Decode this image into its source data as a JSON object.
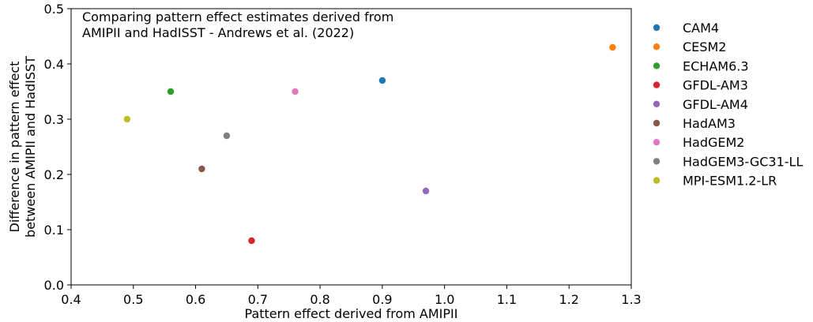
{
  "chart_data": {
    "type": "scatter",
    "annotation_lines": [
      "Comparing pattern effect estimates derived from",
      "AMIPII and HadISST - Andrews et al. (2022)"
    ],
    "xlabel": "Pattern effect derived from AMIPII",
    "ylabel_lines": [
      "Difference in pattern effect",
      "between AMIPII and HadISST"
    ],
    "xlim": [
      0.4,
      1.3
    ],
    "ylim": [
      0.0,
      0.5
    ],
    "xticks": [
      "0.4",
      "0.5",
      "0.6",
      "0.7",
      "0.8",
      "0.9",
      "1.0",
      "1.1",
      "1.2",
      "1.3"
    ],
    "yticks": [
      "0.0",
      "0.1",
      "0.2",
      "0.3",
      "0.4",
      "0.5"
    ],
    "grid": false,
    "legend_position": "outside-right",
    "series": [
      {
        "name": "CAM4",
        "color": "#1f77b4",
        "x": 0.9,
        "y": 0.37
      },
      {
        "name": "CESM2",
        "color": "#ff7f0e",
        "x": 1.27,
        "y": 0.43
      },
      {
        "name": "ECHAM6.3",
        "color": "#2ca02c",
        "x": 0.56,
        "y": 0.35
      },
      {
        "name": "GFDL-AM3",
        "color": "#d62728",
        "x": 0.69,
        "y": 0.08
      },
      {
        "name": "GFDL-AM4",
        "color": "#9467bd",
        "x": 0.97,
        "y": 0.17
      },
      {
        "name": "HadAM3",
        "color": "#8c564b",
        "x": 0.61,
        "y": 0.21
      },
      {
        "name": "HadGEM2",
        "color": "#e377c2",
        "x": 0.76,
        "y": 0.35
      },
      {
        "name": "HadGEM3-GC31-LL",
        "color": "#7f7f7f",
        "x": 0.65,
        "y": 0.27
      },
      {
        "name": "MPI-ESM1.2-LR",
        "color": "#bcbd22",
        "x": 0.49,
        "y": 0.3
      }
    ]
  }
}
